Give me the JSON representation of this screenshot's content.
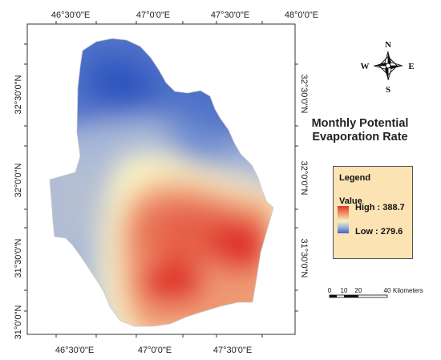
{
  "map": {
    "top_x_labels": [
      "46°30'0\"E",
      "47°0'0\"E",
      "47°30'0\"E",
      "48°0'0\"E"
    ],
    "bottom_x_labels": [
      "46°30'0\"E",
      "47°0'0\"E",
      "47°30'0\"E"
    ],
    "left_y_labels": [
      "32°30'0\"N",
      "32°0'0\"N",
      "31°30'0\"N",
      "31°0'0\"N"
    ],
    "right_y_labels": [
      "32°30'0\"N",
      "32°0'0\"N",
      "31°30'0\"N"
    ]
  },
  "title": {
    "line1": "Monthly Potential",
    "line2": "Evaporation Rate"
  },
  "legend": {
    "heading": "Legend",
    "value_label": "Value",
    "high_label": "High : 388.7",
    "low_label": "Low : 279.6",
    "high_value": 388.7,
    "low_value": 279.6,
    "colors": {
      "high": "#e0342a",
      "mid": "#f7f2c6",
      "low": "#3e63c4",
      "background": "#fbe3b4"
    }
  },
  "north_arrow": {
    "icon": "compass-rose-icon",
    "n": "N",
    "e": "E",
    "s": "S",
    "w": "W"
  },
  "scale_bar": {
    "ticks": [
      "0",
      "10",
      "20",
      "40"
    ],
    "unit": "Kilometers"
  }
}
